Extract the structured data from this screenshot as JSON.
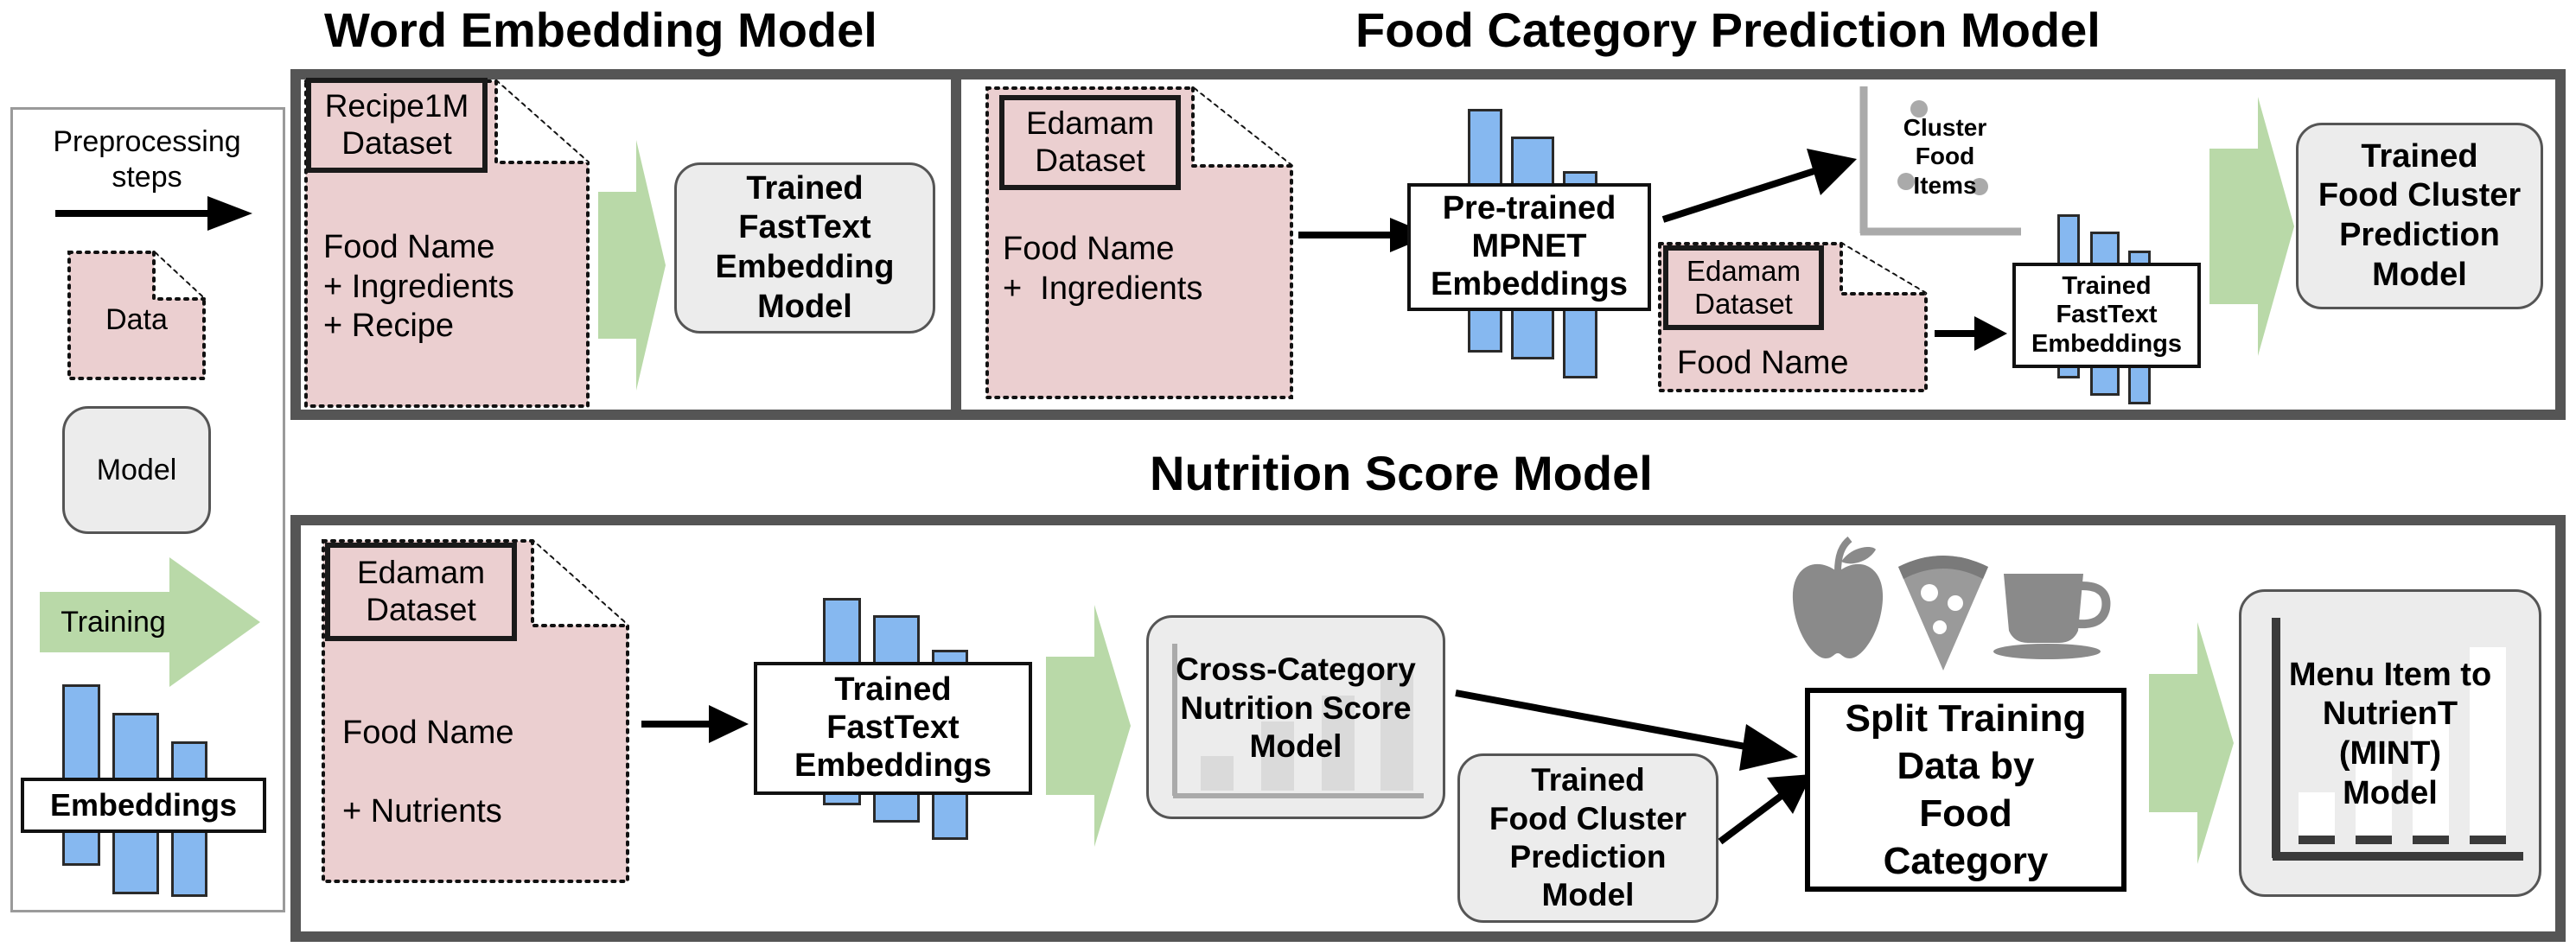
{
  "titles": {
    "word_embedding": "Word Embedding Model",
    "food_category": "Food Category Prediction Model",
    "nutrition_score": "Nutrition Score Model"
  },
  "legend": {
    "preprocessing": "Preprocessing\nsteps",
    "data": "Data",
    "model": "Model",
    "training": "Training",
    "embeddings": "Embeddings"
  },
  "word_embedding": {
    "dataset_label": "Recipe1M\nDataset",
    "dataset_fields": "Food Name\n+ Ingredients\n+ Recipe",
    "model": "Trained\nFastText\nEmbedding\nModel"
  },
  "food_category": {
    "dataset_label": "Edamam\nDataset",
    "dataset_fields": "Food Name\n+  Ingredients",
    "mpnet": "Pre-trained\nMPNET\nEmbeddings",
    "cluster": "Cluster\nFood\nItems",
    "dataset2_label": "Edamam\nDataset",
    "dataset2_fields": "Food Name",
    "fasttext": "Trained\nFastText\nEmbeddings",
    "model": "Trained\nFood Cluster\nPrediction\nModel"
  },
  "nutrition_score": {
    "dataset_label": "Edamam\nDataset",
    "dataset_fields": "Food Name\n\n+ Nutrients",
    "fasttext": "Trained\nFastText\nEmbeddings",
    "cross_model": "Cross-Category\nNutrition Score\nModel",
    "cluster_model": "Trained\nFood Cluster\nPrediction\nModel",
    "split": "Split Training\nData by\nFood\nCategory",
    "mint_model": "Menu Item to\nNutrienT\n(MINT)\nModel"
  },
  "colors": {
    "data": "#ebcfd0",
    "model": "#ececec",
    "training_arrow": "#b9d9a8",
    "embedding_bar": "#86b8f0",
    "frame": "#555555"
  },
  "icons": [
    "apple-icon",
    "pizza-slice-icon",
    "coffee-cup-icon"
  ]
}
